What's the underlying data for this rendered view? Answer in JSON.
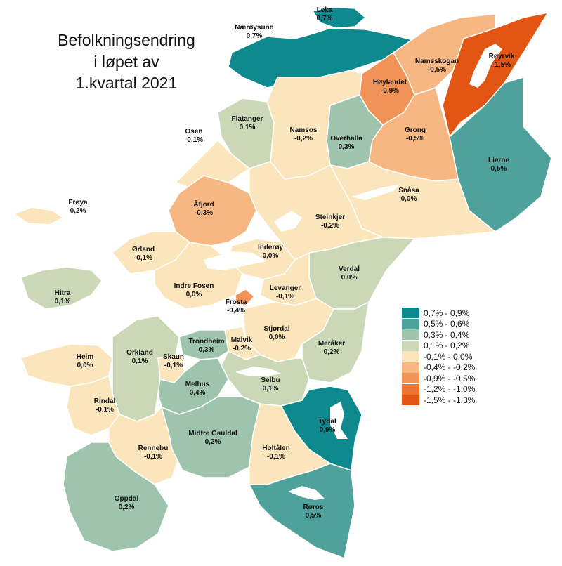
{
  "title": [
    "Befolkningsendring",
    "i løpet av",
    "1.kvartal 2021"
  ],
  "colors": {
    "c1": "#0e8a8e",
    "c2": "#4fa29c",
    "c3": "#9ec4ae",
    "c4": "#cad8b8",
    "c5": "#fbe5bc",
    "c6": "#f7b783",
    "c7": "#f19257",
    "c8": "#ec7330",
    "c9": "#e25512"
  },
  "legend": [
    {
      "label": "0,7% - 0,9%",
      "color": "#0e8a8e"
    },
    {
      "label": "0,5% - 0,6%",
      "color": "#4fa29c"
    },
    {
      "label": "0,3% - 0,4%",
      "color": "#9ec4ae"
    },
    {
      "label": "0,1% - 0,2%",
      "color": "#cad8b8"
    },
    {
      "label": "-0,1% - 0,0%",
      "color": "#fbe5bc"
    },
    {
      "label": "-0,4% - -0,2%",
      "color": "#f7b783"
    },
    {
      "label": "-0,9% - -0,5%",
      "color": "#f19257"
    },
    {
      "label": "-1,2% - -1,0%",
      "color": "#ec7330"
    },
    {
      "label": "-1,5% - -1,3%",
      "color": "#e25512"
    }
  ],
  "municipalities": [
    {
      "name": "Leka",
      "value": "0,7%"
    },
    {
      "name": "Nærøysund",
      "value": "0,7%"
    },
    {
      "name": "Røyrvik",
      "value": "-1,5%"
    },
    {
      "name": "Namsskogan",
      "value": "-0,5%"
    },
    {
      "name": "Høylandet",
      "value": "-0,9%"
    },
    {
      "name": "Flatanger",
      "value": "0,1%"
    },
    {
      "name": "Osen",
      "value": "-0,1%"
    },
    {
      "name": "Namsos",
      "value": "-0,2%"
    },
    {
      "name": "Overhalla",
      "value": "0,3%"
    },
    {
      "name": "Grong",
      "value": "-0,5%"
    },
    {
      "name": "Lierne",
      "value": "0,5%"
    },
    {
      "name": "Snåsa",
      "value": "0,0%"
    },
    {
      "name": "Frøya",
      "value": "0,2%"
    },
    {
      "name": "Åfjord",
      "value": "-0,3%"
    },
    {
      "name": "Steinkjer",
      "value": "-0,2%"
    },
    {
      "name": "Ørland",
      "value": "-0,1%"
    },
    {
      "name": "Inderøy",
      "value": "0,0%"
    },
    {
      "name": "Verdal",
      "value": "0,0%"
    },
    {
      "name": "Hitra",
      "value": "0,1%"
    },
    {
      "name": "Indre Fosen",
      "value": "0,0%"
    },
    {
      "name": "Levanger",
      "value": "-0,1%"
    },
    {
      "name": "Frosta",
      "value": "-0,4%"
    },
    {
      "name": "Stjørdal",
      "value": "0,0%"
    },
    {
      "name": "Meråker",
      "value": "0,2%"
    },
    {
      "name": "Trondheim",
      "value": "0,3%"
    },
    {
      "name": "Malvik",
      "value": "-0,2%"
    },
    {
      "name": "Heim",
      "value": "0,0%"
    },
    {
      "name": "Orkland",
      "value": "0,1%"
    },
    {
      "name": "Skaun",
      "value": "-0,1%"
    },
    {
      "name": "Selbu",
      "value": "0,1%"
    },
    {
      "name": "Melhus",
      "value": "0,4%"
    },
    {
      "name": "Rindal",
      "value": "-0,1%"
    },
    {
      "name": "Tydal",
      "value": "0,9%"
    },
    {
      "name": "Rennebu",
      "value": "-0,1%"
    },
    {
      "name": "Midtre Gauldal",
      "value": "0,2%"
    },
    {
      "name": "Holtålen",
      "value": "-0,1%"
    },
    {
      "name": "Oppdal",
      "value": "0,2%"
    },
    {
      "name": "Røros",
      "value": "0,5%"
    }
  ]
}
